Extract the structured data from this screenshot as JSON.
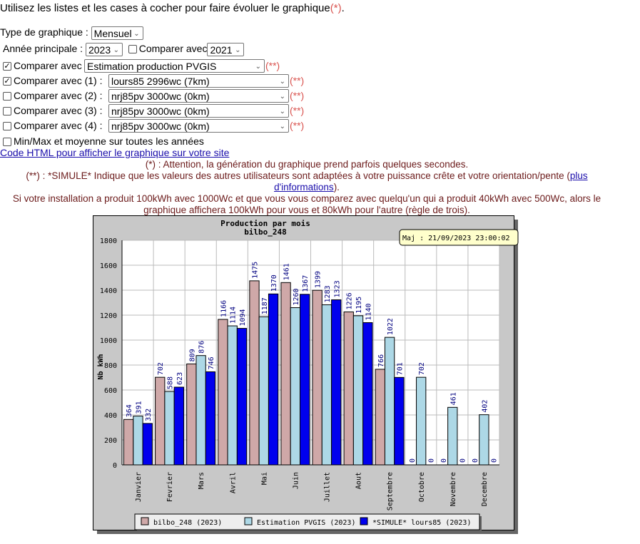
{
  "intro": {
    "text": "Utilisez les listes et les cases à cocher pour faire évoluer le graphique",
    "mark": "(*)",
    "end": "."
  },
  "form": {
    "type_label": "Type de graphique :",
    "type_value": "Mensuel",
    "year_label": "Année principale :",
    "year_value": "2023",
    "compare_year_label": "Comparer avec",
    "compare_year_value": "2021",
    "compare_year_checked": false,
    "compare_rows": [
      {
        "label": "Comparer avec",
        "value": "Estimation production PVGIS",
        "checked": true,
        "mark": "(**)"
      },
      {
        "label": "Comparer avec (1) :",
        "value": "lours85 2996wc (7km)",
        "checked": true,
        "mark": "(**)"
      },
      {
        "label": "Comparer avec (2) :",
        "value": "nrj85pv 3000wc (0km)",
        "checked": false,
        "mark": "(**)"
      },
      {
        "label": "Comparer avec (3) :",
        "value": "nrj85pv 3000wc (0km)",
        "checked": false,
        "mark": "(**)"
      },
      {
        "label": "Comparer avec (4) :",
        "value": "nrj85pv 3000wc (0km)",
        "checked": false,
        "mark": "(**)"
      }
    ],
    "minmax_label": "Min/Max et moyenne sur toutes les années",
    "minmax_checked": false,
    "html_link": "Code HTML pour afficher le graphique sur votre site"
  },
  "notes": {
    "n1": "(*) : Attention, la génération du graphique prend parfois quelques secondes.",
    "n2": "(**) : *SIMULE* Indique que les valeurs des autres utilisateurs sont adaptées à votre puissance crête et votre orientation/pente (",
    "n2_link": "plus d'informations",
    "n2_end": ").",
    "n3": "Si votre installation a produit 100kWh avec 1000Wc et que vous vous comparez avec quelqu'un qui a produit 40kWh avec 500Wc, alors le graphique affichera 100kWh pour vous et 80kWh pour l'autre (règle de trois)."
  },
  "chart_data": {
    "type": "bar",
    "title": "Production par mois",
    "subtitle": "bilbo_248",
    "update_label": "Maj : 21/09/2023 23:00:02",
    "ylabel": "Nb kWh",
    "xlabel": "",
    "ylim": [
      0,
      1800
    ],
    "yticks": [
      0,
      200,
      400,
      600,
      800,
      1000,
      1200,
      1400,
      1600,
      1800
    ],
    "grid": true,
    "legend": "bottom",
    "categories": [
      "Janvier",
      "Fevrier",
      "Mars",
      "Avril",
      "Mai",
      "Juin",
      "Juillet",
      "Aout",
      "Septembre",
      "Octobre",
      "Novembre",
      "Decembre"
    ],
    "series": [
      {
        "name": "bilbo_248 (2023)",
        "color": "#cfa8a8",
        "values": [
          364,
          702,
          809,
          1166,
          1475,
          1461,
          1399,
          1226,
          766,
          0,
          0,
          0
        ]
      },
      {
        "name": "Estimation PVGIS (2023)",
        "color": "#add8e6",
        "values": [
          391,
          588,
          876,
          1114,
          1187,
          1260,
          1283,
          1195,
          1022,
          702,
          461,
          402
        ]
      },
      {
        "name": "*SIMULE* lours85 (2023)",
        "color": "#0000ee",
        "values": [
          332,
          623,
          746,
          1094,
          1370,
          1367,
          1323,
          1140,
          701,
          0,
          0,
          0
        ]
      }
    ]
  }
}
